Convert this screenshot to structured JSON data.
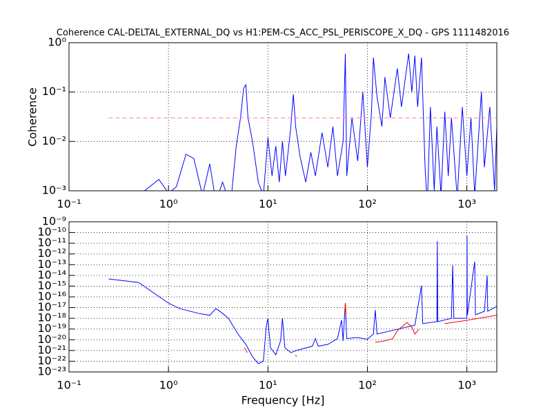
{
  "chart_data": [
    {
      "type": "line",
      "title": "Coherence CAL-DELTAL_EXTERNAL_DQ vs H1:PEM-CS_ACC_PSL_PERISCOPE_X_DQ - GPS 1111482016",
      "ylabel": "Coherence",
      "xscale": "log",
      "yscale": "log",
      "grid": true,
      "xlim": [
        0.1,
        2000
      ],
      "ylim": [
        0.001,
        1
      ],
      "xticks": [
        {
          "value": 0.1,
          "label": "10⁻¹"
        },
        {
          "value": 1,
          "label": "10⁰"
        },
        {
          "value": 10,
          "label": "10¹"
        },
        {
          "value": 100,
          "label": "10²"
        },
        {
          "value": 1000,
          "label": "10³"
        }
      ],
      "yticks": [
        {
          "value": 0.001,
          "label": "10⁻³"
        },
        {
          "value": 0.01,
          "label": "10⁻²"
        },
        {
          "value": 0.1,
          "label": "10⁻¹"
        },
        {
          "value": 1,
          "label": "10⁰"
        }
      ],
      "series": [
        {
          "color": "#0000ff",
          "linestyle": "solid",
          "x": [
            0.5,
            0.8,
            1,
            1.2,
            1.5,
            1.8,
            2.2,
            2.6,
            3,
            3.5,
            4.2,
            4.8,
            5.3,
            5.7,
            6.0,
            6.3,
            7,
            8,
            9,
            10,
            11,
            12,
            13,
            14,
            15,
            17,
            18,
            19,
            21,
            24,
            27,
            30,
            35,
            40,
            45,
            50,
            57,
            60,
            62,
            70,
            80,
            90,
            100,
            110,
            115,
            125,
            140,
            150,
            170,
            200,
            220,
            260,
            280,
            300,
            320,
            350,
            380,
            400,
            430,
            470,
            500,
            550,
            600,
            650,
            700,
            800,
            900,
            1000,
            1100,
            1200,
            1400,
            1500,
            1700,
            1900,
            2000
          ],
          "values": [
            0.0008,
            0.0017,
            0.0009,
            0.0012,
            0.0055,
            0.0045,
            0.0008,
            0.0035,
            0.0006,
            0.0015,
            0.0005,
            0.008,
            0.03,
            0.12,
            0.14,
            0.03,
            0.01,
            0.0015,
            0.0008,
            0.012,
            0.002,
            0.008,
            0.0015,
            0.01,
            0.002,
            0.02,
            0.09,
            0.02,
            0.005,
            0.0015,
            0.006,
            0.002,
            0.015,
            0.003,
            0.02,
            0.002,
            0.01,
            0.6,
            0.002,
            0.03,
            0.004,
            0.1,
            0.003,
            0.04,
            0.5,
            0.08,
            0.02,
            0.2,
            0.03,
            0.3,
            0.05,
            0.6,
            0.1,
            0.55,
            0.05,
            0.5,
            0.003,
            0.0005,
            0.05,
            0.001,
            0.02,
            0.0008,
            0.04,
            0.002,
            0.03,
            0.0007,
            0.05,
            0.002,
            0.03,
            0.0008,
            0.1,
            0.003,
            0.05,
            0.001,
            0.02
          ]
        },
        {
          "color": "#ff8080",
          "linestyle": "dashed",
          "x": [
            0.25,
            2000
          ],
          "values": [
            0.03,
            0.03
          ]
        }
      ]
    },
    {
      "type": "line",
      "xlabel": "Frequency [Hz]",
      "xscale": "log",
      "yscale": "log",
      "grid": true,
      "xlim": [
        0.1,
        2000
      ],
      "ylim": [
        1e-23,
        1e-09
      ],
      "xticks": [
        {
          "value": 0.1,
          "label": "10⁻¹"
        },
        {
          "value": 1,
          "label": "10⁰"
        },
        {
          "value": 10,
          "label": "10¹"
        },
        {
          "value": 100,
          "label": "10²"
        },
        {
          "value": 1000,
          "label": "10³"
        }
      ],
      "yticks": [
        {
          "value": 1e-23,
          "label": "10⁻²³"
        },
        {
          "value": 1e-22,
          "label": "10⁻²²"
        },
        {
          "value": 1e-21,
          "label": "10⁻²¹"
        },
        {
          "value": 1e-20,
          "label": "10⁻²⁰"
        },
        {
          "value": 1e-19,
          "label": "10⁻¹⁹"
        },
        {
          "value": 1e-18,
          "label": "10⁻¹⁸"
        },
        {
          "value": 1e-17,
          "label": "10⁻¹⁷"
        },
        {
          "value": 1e-16,
          "label": "10⁻¹⁶"
        },
        {
          "value": 1e-15,
          "label": "10⁻¹⁵"
        },
        {
          "value": 1e-14,
          "label": "10⁻¹⁴"
        },
        {
          "value": 1e-13,
          "label": "10⁻¹³"
        },
        {
          "value": 1e-12,
          "label": "10⁻¹²"
        },
        {
          "value": 1e-11,
          "label": "10⁻¹¹"
        },
        {
          "value": 1e-10,
          "label": "10⁻¹⁰"
        },
        {
          "value": 1e-09,
          "label": "10⁻⁹"
        }
      ],
      "series": [
        {
          "color": "#0000ff",
          "linestyle": "solid",
          "x": [
            0.25,
            0.5,
            1,
            1.3,
            2,
            2.6,
            3,
            3.5,
            4,
            5,
            6,
            7,
            8,
            9,
            9.6,
            10,
            10.6,
            12,
            13.4,
            14,
            14.8,
            17,
            20,
            28,
            30,
            32,
            40,
            50,
            55,
            57,
            60,
            62,
            80,
            100,
            115,
            120,
            125,
            200,
            300,
            350,
            360,
            500,
            505,
            510,
            700,
            720,
            740,
            1000,
            1005,
            1010,
            1200,
            1220,
            1500,
            1600,
            1620,
            2000
          ],
          "values": [
            4.7e-15,
            2.2e-15,
            2.6e-17,
            8e-18,
            2.9e-18,
            1.9e-18,
            8e-18,
            2.9e-18,
            1e-18,
            3.4e-20,
            3.7e-21,
            2.6e-22,
            5.9e-23,
            1e-22,
            1.5e-19,
            1e-18,
            1.8e-21,
            4e-22,
            7.9e-21,
            1e-18,
            1.8e-21,
            6.3e-22,
            1.1e-21,
            2.5e-21,
            1.3e-20,
            2.5e-21,
            3.7e-21,
            1.3e-20,
            6.6e-19,
            7.9e-21,
            2.6e-17,
            1.3e-20,
            1.6e-20,
            1.1e-20,
            3.4e-20,
            6e-18,
            3.4e-20,
            9.5e-20,
            2.3e-19,
            1.1e-15,
            3.2e-19,
            4.9e-19,
            1.6e-11,
            4.9e-19,
            1e-18,
            8.9e-14,
            1e-18,
            1e-18,
            5.2e-11,
            1.9e-18,
            1.9e-13,
            2.1e-18,
            4.5e-18,
            1e-14,
            4.5e-18,
            1.3e-17
          ]
        },
        {
          "color": "#ff0000",
          "linestyle": "solid",
          "x": [
            5.8,
            6.2,
            6.5,
            19,
            19.3,
            19.6,
            59,
            60,
            61,
            62,
            120,
            150,
            180,
            200,
            250,
            280,
            300,
            330,
            400,
            600,
            1000,
            2000
          ],
          "values": [
            1.8e-21,
            6.3e-22,
            null,
            4e-22,
            2.6e-22,
            null,
            2.9e-18,
            2.6e-17,
            2e-18,
            null,
            5.8e-21,
            7.9e-21,
            1.3e-20,
            7e-20,
            4.1e-19,
            1.5e-19,
            3.4e-20,
            9.5e-20,
            null,
            3.2e-19,
            6.6e-19,
            1.9e-18
          ]
        }
      ]
    }
  ]
}
